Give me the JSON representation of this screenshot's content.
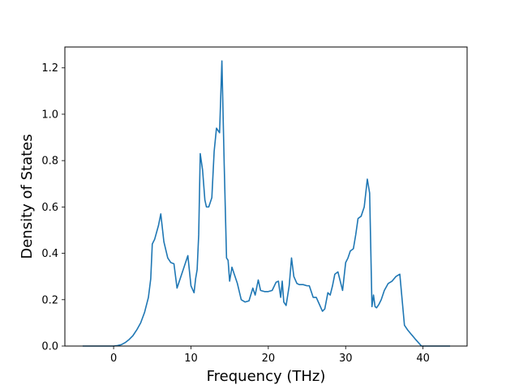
{
  "chart_data": {
    "type": "line",
    "title": "",
    "xlabel": "Frequency (THz)",
    "ylabel": "Density of States",
    "xlim": [
      -6.3,
      45.7
    ],
    "ylim": [
      0.0,
      1.29
    ],
    "xticks": [
      0,
      10,
      20,
      30,
      40
    ],
    "yticks": [
      0.0,
      0.2,
      0.4,
      0.6,
      0.8,
      1.0,
      1.2
    ],
    "xtick_labels": [
      "0",
      "10",
      "20",
      "30",
      "40"
    ],
    "ytick_labels": [
      "0.0",
      "0.2",
      "0.4",
      "0.6",
      "0.8",
      "1.0",
      "1.2"
    ],
    "grid": false,
    "legend": "none",
    "color": "#1f77b4",
    "series": [
      {
        "x": [
          -4,
          -2,
          0,
          0.5,
          1.0,
          1.5,
          2.0,
          2.5,
          3.0,
          3.5,
          4.0,
          4.5,
          4.8,
          5.0,
          5.3,
          5.8,
          6.1,
          6.5,
          7.0,
          7.4,
          7.8,
          8.2,
          8.7,
          9.0,
          9.3,
          9.6,
          10.0,
          10.4,
          10.6,
          10.8,
          11.0,
          11.2,
          11.5,
          11.8,
          12.0,
          12.3,
          12.7,
          13.0,
          13.3,
          13.7,
          14.0,
          14.3,
          14.6,
          14.8,
          15.0,
          15.3,
          15.6,
          16.0,
          16.5,
          17.0,
          17.5,
          18.0,
          18.3,
          18.7,
          19.0,
          19.5,
          20.0,
          20.5,
          21.0,
          21.3,
          21.6,
          21.8,
          22.0,
          22.3,
          22.7,
          23.0,
          23.3,
          23.7,
          24.0,
          24.5,
          25.0,
          25.3,
          25.8,
          26.2,
          26.6,
          27.0,
          27.3,
          27.7,
          28.0,
          28.3,
          28.6,
          29.0,
          29.3,
          29.6,
          30.0,
          30.3,
          30.6,
          31.0,
          31.3,
          31.6,
          32.0,
          32.4,
          32.8,
          33.1,
          33.4,
          33.6,
          33.8,
          34.0,
          34.3,
          34.6,
          35.0,
          35.5,
          36.0,
          36.5,
          37.0,
          37.3,
          37.6,
          38.0,
          38.5,
          39.0,
          39.4,
          39.8,
          40.3,
          41.0,
          43.5
        ],
        "y": [
          0.0,
          0.0,
          0.0,
          0.002,
          0.006,
          0.015,
          0.028,
          0.045,
          0.07,
          0.1,
          0.145,
          0.21,
          0.29,
          0.44,
          0.46,
          0.52,
          0.57,
          0.45,
          0.38,
          0.36,
          0.355,
          0.25,
          0.3,
          0.33,
          0.36,
          0.39,
          0.26,
          0.23,
          0.29,
          0.33,
          0.48,
          0.83,
          0.76,
          0.63,
          0.6,
          0.6,
          0.64,
          0.84,
          0.94,
          0.92,
          1.23,
          0.78,
          0.38,
          0.37,
          0.28,
          0.34,
          0.31,
          0.27,
          0.2,
          0.19,
          0.195,
          0.25,
          0.22,
          0.285,
          0.24,
          0.235,
          0.235,
          0.24,
          0.275,
          0.28,
          0.21,
          0.28,
          0.19,
          0.175,
          0.26,
          0.38,
          0.3,
          0.27,
          0.265,
          0.265,
          0.26,
          0.26,
          0.21,
          0.21,
          0.18,
          0.15,
          0.16,
          0.23,
          0.22,
          0.26,
          0.31,
          0.32,
          0.28,
          0.24,
          0.36,
          0.38,
          0.41,
          0.42,
          0.48,
          0.55,
          0.56,
          0.6,
          0.72,
          0.66,
          0.17,
          0.22,
          0.17,
          0.165,
          0.18,
          0.2,
          0.24,
          0.27,
          0.28,
          0.3,
          0.31,
          0.2,
          0.09,
          0.07,
          0.05,
          0.03,
          0.015,
          0.0,
          0.0,
          0.0,
          0.0
        ]
      }
    ]
  }
}
